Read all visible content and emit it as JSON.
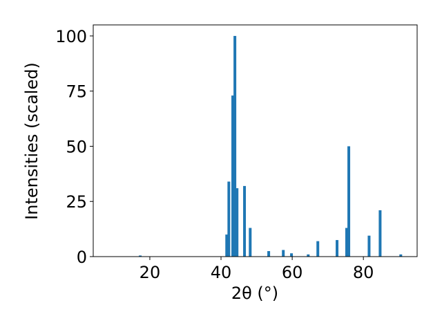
{
  "chart_data": {
    "type": "bar",
    "x_label": "2θ (°)",
    "y_label": "Intensities (scaled)",
    "x": [
      17.3,
      41.6,
      42.2,
      43.3,
      43.9,
      44.5,
      46.6,
      48.2,
      53.4,
      57.5,
      59.8,
      64.5,
      67.2,
      72.6,
      75.3,
      75.9,
      81.6,
      84.7,
      90.5
    ],
    "values": [
      0.5,
      10,
      34,
      73,
      100,
      31,
      32,
      13,
      2.5,
      3,
      1.5,
      1,
      7,
      7.5,
      13,
      50,
      9.5,
      21,
      1
    ],
    "color": "#1f77b4",
    "xlim": [
      4.1,
      95.1
    ],
    "ylim": [
      0,
      105
    ],
    "xticks": [
      20,
      40,
      60,
      80
    ],
    "yticks": [
      0,
      25,
      50,
      75,
      100
    ],
    "grid": false
  }
}
